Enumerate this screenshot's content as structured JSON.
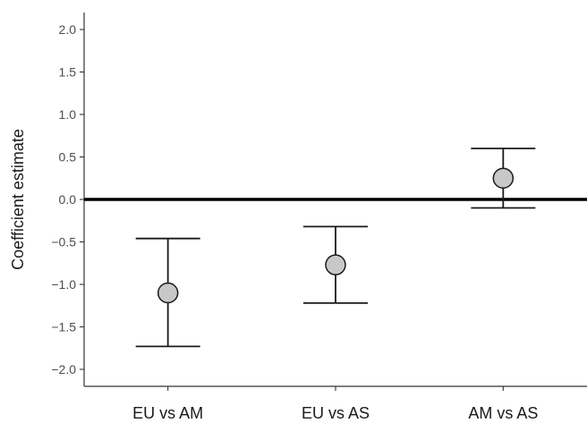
{
  "chart_data": {
    "type": "scatter",
    "title": "",
    "xlabel": "",
    "ylabel": "Coefficient estimate",
    "categories": [
      "EU vs AM",
      "EU vs AS",
      "AM vs AS"
    ],
    "series": [
      {
        "estimate": [
          -1.1,
          -0.77,
          0.25
        ],
        "lower": [
          -1.73,
          -1.22,
          -0.1
        ],
        "upper": [
          -0.46,
          -0.32,
          0.6
        ]
      }
    ],
    "ylim": [
      -2.2,
      2.2
    ],
    "yticks": [
      -2.0,
      -1.5,
      -1.0,
      -0.5,
      0.0,
      0.5,
      1.0,
      1.5,
      2.0
    ],
    "ytick_labels": [
      "−2.0",
      "−1.5",
      "−1.0",
      "−0.5",
      "0.0",
      "0.5",
      "1.0",
      "1.5",
      "2.0"
    ],
    "reference_line": 0,
    "grid": false,
    "legend": "none",
    "colors": {
      "point_fill": "#c8c8c8",
      "point_stroke": "#1a1a1a",
      "axis": "#333333",
      "reference": "#000000"
    }
  }
}
